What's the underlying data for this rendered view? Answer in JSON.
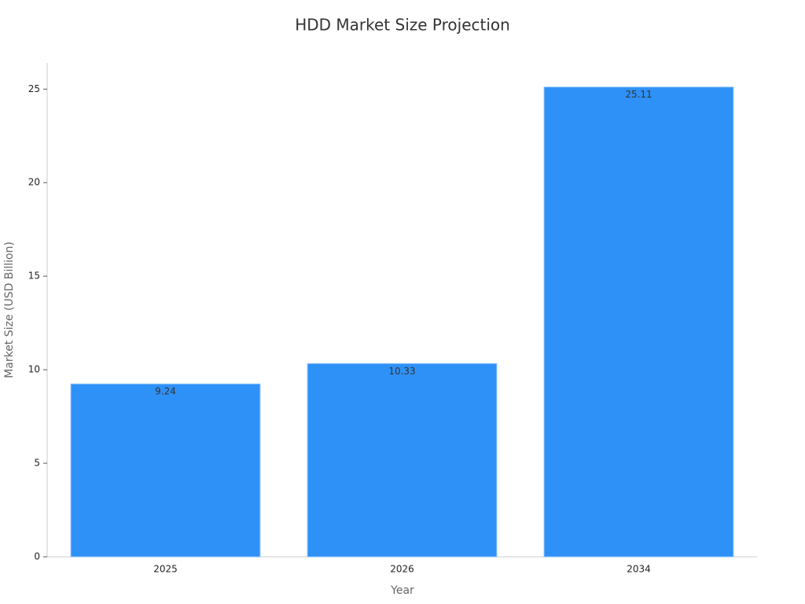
{
  "chart_data": {
    "type": "bar",
    "title": "HDD Market Size Projection",
    "x_label": "Year",
    "y_label": "Market Size (USD Billion)",
    "categories": [
      "2025",
      "2026",
      "2034"
    ],
    "values": [
      9.24,
      10.33,
      25.11
    ],
    "color": "#2e91f8",
    "ylim": [
      0,
      26.4
    ],
    "yticks": [
      0,
      5,
      10,
      15,
      20,
      25
    ],
    "grid": false
  }
}
